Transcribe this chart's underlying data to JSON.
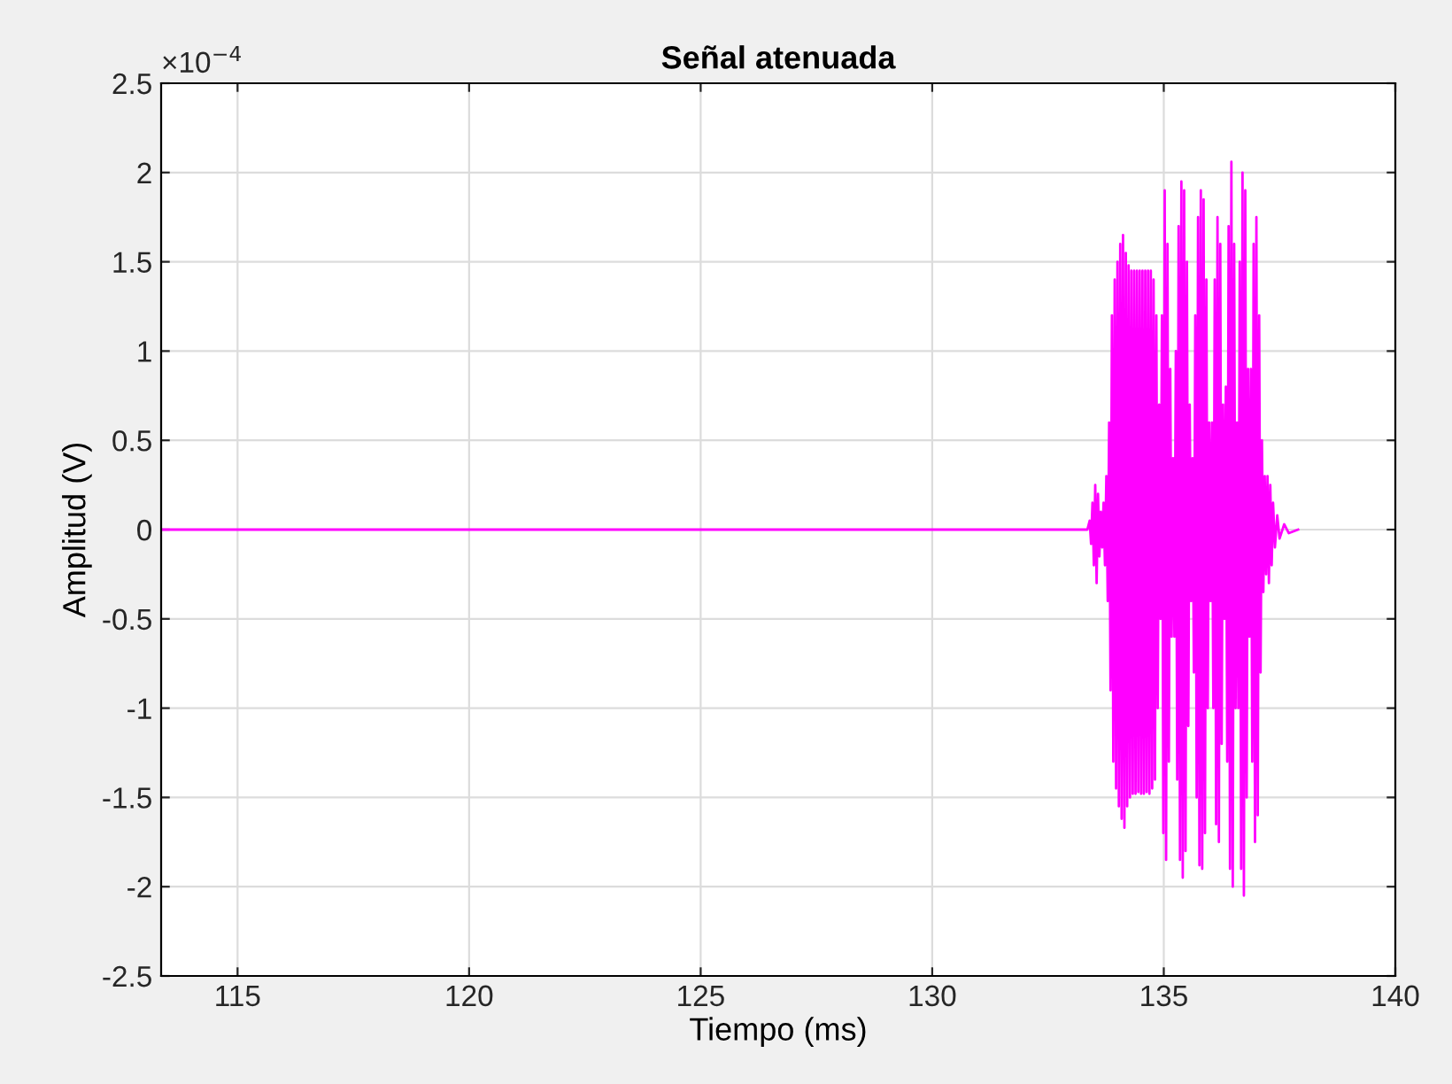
{
  "chart_data": {
    "type": "line",
    "title": "Señal atenuada",
    "xlabel": "Tiempo (ms)",
    "ylabel": "Amplitud (V)",
    "annotations": [
      "×10$^{−4}$"
    ],
    "xlim": [
      113.35,
      140
    ],
    "xticks": [
      115,
      120,
      125,
      130,
      135,
      140
    ],
    "ylim": [
      -2.5,
      2.5
    ],
    "yticks": [
      -2.5,
      -2,
      -1.5,
      -1,
      -0.5,
      0,
      0.5,
      1,
      1.5,
      2,
      2.5
    ],
    "grid": true,
    "line_style": "solid",
    "marker": "none",
    "series": [
      {
        "color": "#ff00ff",
        "x": [
          113.35,
          133.35,
          133.4,
          133.43,
          133.46,
          133.49,
          133.52,
          133.55,
          133.58,
          133.61,
          133.64,
          133.67,
          133.7,
          133.73,
          133.76,
          133.79,
          133.82,
          133.85,
          133.88,
          133.91,
          133.94,
          133.97,
          134.0,
          134.03,
          134.06,
          134.09,
          134.12,
          134.15,
          134.18,
          134.21,
          134.24,
          134.27,
          134.3,
          134.33,
          134.36,
          134.39,
          134.42,
          134.45,
          134.48,
          134.51,
          134.54,
          134.57,
          134.6,
          134.63,
          134.66,
          134.69,
          134.72,
          134.75,
          134.78,
          134.81,
          134.84,
          134.87,
          134.9,
          134.93,
          134.96,
          134.99,
          135.02,
          135.05,
          135.08,
          135.11,
          135.14,
          135.17,
          135.2,
          135.23,
          135.26,
          135.29,
          135.32,
          135.35,
          135.38,
          135.41,
          135.44,
          135.47,
          135.5,
          135.53,
          135.56,
          135.59,
          135.62,
          135.65,
          135.68,
          135.71,
          135.74,
          135.77,
          135.8,
          135.83,
          135.86,
          135.89,
          135.92,
          135.95,
          135.98,
          136.01,
          136.04,
          136.07,
          136.1,
          136.13,
          136.16,
          136.19,
          136.22,
          136.25,
          136.28,
          136.31,
          136.34,
          136.37,
          136.4,
          136.43,
          136.46,
          136.49,
          136.52,
          136.55,
          136.58,
          136.61,
          136.64,
          136.67,
          136.7,
          136.73,
          136.76,
          136.79,
          136.82,
          136.85,
          136.88,
          136.91,
          136.94,
          136.97,
          137.0,
          137.03,
          137.06,
          137.09,
          137.12,
          137.15,
          137.18,
          137.21,
          137.24,
          137.27,
          137.3,
          137.33,
          137.36,
          137.4,
          137.45,
          137.5,
          137.6,
          137.7,
          137.9
        ],
        "values": [
          0,
          0,
          0.05,
          -0.08,
          0.15,
          -0.2,
          0.25,
          -0.3,
          0.2,
          -0.15,
          0.1,
          -0.1,
          0.15,
          -0.2,
          0.3,
          -0.4,
          0.6,
          -0.9,
          1.2,
          -1.3,
          1.4,
          -1.45,
          1.5,
          -1.55,
          1.6,
          -1.62,
          1.65,
          -1.67,
          1.55,
          -1.55,
          1.48,
          -1.5,
          1.45,
          -1.48,
          1.45,
          -1.48,
          1.45,
          -1.47,
          1.45,
          -1.48,
          1.45,
          -1.48,
          1.45,
          -1.47,
          1.45,
          -1.48,
          1.45,
          -1.45,
          1.4,
          -1.4,
          1.2,
          -1.0,
          0.7,
          -0.5,
          1.2,
          -1.7,
          1.9,
          -1.85,
          1.6,
          -1.3,
          0.9,
          -0.6,
          0.4,
          -0.6,
          1.0,
          -1.4,
          1.7,
          -1.85,
          1.95,
          -1.95,
          1.9,
          -1.8,
          1.5,
          -1.1,
          0.7,
          -0.4,
          0.4,
          -0.8,
          1.2,
          -1.5,
          1.75,
          -1.88,
          1.9,
          -1.9,
          1.85,
          -1.7,
          1.4,
          -1.0,
          0.6,
          -0.4,
          0.6,
          -1.0,
          1.4,
          -1.65,
          1.75,
          -1.75,
          1.6,
          -1.2,
          0.7,
          -0.5,
          0.8,
          -1.3,
          1.7,
          -1.9,
          2.06,
          -2.0,
          1.6,
          -1.0,
          0.6,
          -1.0,
          1.5,
          -1.9,
          2.0,
          -2.05,
          1.9,
          -1.5,
          0.9,
          -0.6,
          0.9,
          -1.3,
          1.6,
          -1.75,
          1.75,
          -1.6,
          1.2,
          -0.8,
          0.5,
          -0.35,
          0.3,
          -0.25,
          0.3,
          -0.3,
          0.25,
          -0.2,
          0.15,
          -0.1,
          0.08,
          -0.05,
          0.03,
          -0.02,
          0
        ]
      }
    ]
  }
}
